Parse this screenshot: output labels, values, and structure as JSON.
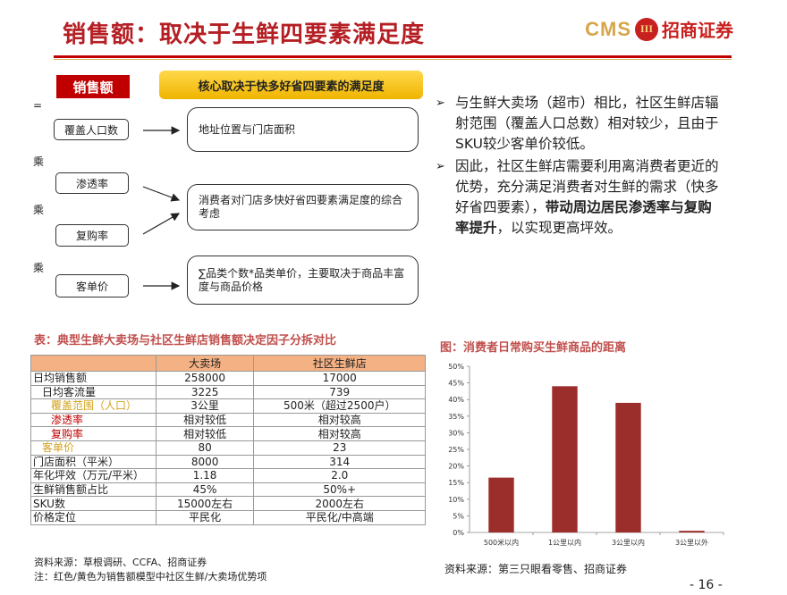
{
  "header": {
    "title": "销售额：取决于生鲜四要素满足度",
    "logo_cms": "CMS",
    "logo_mark": "III",
    "logo_text": "招商证券"
  },
  "diagram": {
    "sales_tag": "销售额",
    "core_banner": "核心取决于快多好省四要素的满足度",
    "operators": [
      "=",
      "乘",
      "乘",
      "乘"
    ],
    "factors": [
      "覆盖人口数",
      "渗透率",
      "复购率",
      "客单价"
    ],
    "results": [
      "地址位置与门店面积",
      "消费者对门店多快好省四要素满足度的综合考虑",
      "∑品类个数*品类单价，主要取决于商品丰富度与商品价格"
    ]
  },
  "bullets": [
    {
      "marker": "➢",
      "text": "与生鲜大卖场（超市）相比，社区生鲜店辐射范围（覆盖人口总数）相对较少，且由于SKU较少客单价较低。",
      "bold": ""
    },
    {
      "marker": "➢",
      "text_before": "因此，社区生鲜店需要利用离消费者更近的优势，充分满足消费者对生鲜的需求（快多好省四要素），",
      "bold": "带动周边居民渗透率与复购率提升",
      "text_after": "，以实现更高坪效。"
    }
  ],
  "table": {
    "title": "表：典型生鲜大卖场与社区生鲜店销售额决定因子分拆对比",
    "headers": [
      "",
      "大卖场",
      "社区生鲜店"
    ],
    "rows": [
      {
        "label": "日均销售额",
        "a": "258000",
        "b": "17000",
        "style": "",
        "indent": ""
      },
      {
        "label": "日均客流量",
        "a": "3225",
        "b": "739",
        "style": "",
        "indent": "ind1"
      },
      {
        "label": "覆盖范围（人口）",
        "a": "3公里",
        "b": "500米（超过2500户）",
        "style": "gold",
        "indent": "ind2"
      },
      {
        "label": "渗透率",
        "a": "相对较低",
        "b": "相对较高",
        "style": "red",
        "indent": "ind2"
      },
      {
        "label": "复购率",
        "a": "相对较低",
        "b": "相对较高",
        "style": "red",
        "indent": "ind2"
      },
      {
        "label": "客单价",
        "a": "80",
        "b": "23",
        "style": "gold",
        "indent": "ind1"
      },
      {
        "label": "门店面积（平米）",
        "a": "8000",
        "b": "314",
        "style": "",
        "indent": ""
      },
      {
        "label": "年化坪效（万元/平米）",
        "a": "1.18",
        "b": "2.0",
        "style": "",
        "indent": ""
      },
      {
        "label": "生鲜销售额占比",
        "a": "45%",
        "b": "50%+",
        "style": "",
        "indent": ""
      },
      {
        "label": "SKU数",
        "a": "15000左右",
        "b": "2000左右",
        "style": "",
        "indent": ""
      },
      {
        "label": "价格定位",
        "a": "平民化",
        "b": "平民化/中高端",
        "style": "",
        "indent": ""
      }
    ],
    "source": "资料来源：草根调研、CCFA、招商证券",
    "note": "注：红色/黄色为销售额模型中社区生鲜/大卖场优势项"
  },
  "chart_title": "图：消费者日常购买生鲜商品的距离",
  "chart_data": {
    "type": "bar",
    "categories": [
      "500米以内",
      "1公里以内",
      "3公里以内",
      "3公里以外"
    ],
    "values": [
      0.165,
      0.44,
      0.39,
      0.005
    ],
    "ylim": [
      0,
      0.5
    ],
    "yticks": [
      "0%",
      "5%",
      "10%",
      "15%",
      "20%",
      "25%",
      "30%",
      "35%",
      "40%",
      "45%",
      "50%"
    ],
    "bar_color": "#9b2d2a",
    "grid": false,
    "legend": "none"
  },
  "chart_source": "资料来源：第三只眼看零售、招商证券",
  "page_number": "- 16 -"
}
